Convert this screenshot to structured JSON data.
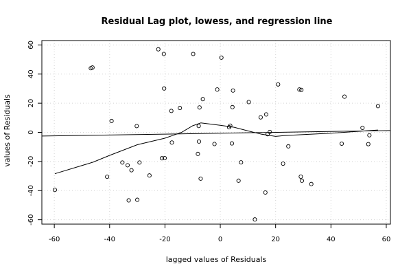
{
  "chart_data": {
    "type": "scatter",
    "title": "Residual Lag plot, lowess, and regression line",
    "xlabel": "lagged values of Residuals",
    "ylabel": "values of Residuals",
    "xlim": [
      -64.5,
      61.5
    ],
    "ylim": [
      -63,
      63
    ],
    "xticks": [
      "-60",
      "-40",
      "-20",
      "0",
      "20",
      "40",
      "60"
    ],
    "xtick_values": [
      -60,
      -40,
      -20,
      0,
      20,
      40,
      60
    ],
    "yticks": [
      "-60",
      "-40",
      "-20",
      "0",
      "20",
      "40",
      "60"
    ],
    "ytick_values": [
      -60,
      -40,
      -20,
      0,
      20,
      40,
      60
    ],
    "grid": true,
    "points": [
      [
        -59.8,
        -39.5
      ],
      [
        -46.8,
        44.0
      ],
      [
        -46.2,
        44.5
      ],
      [
        -40.9,
        -30.5
      ],
      [
        -39.3,
        7.8
      ],
      [
        -35.4,
        -20.7
      ],
      [
        -33.5,
        -22.6
      ],
      [
        -33.1,
        -46.7
      ],
      [
        -32.1,
        -26.0
      ],
      [
        -30.2,
        4.3
      ],
      [
        -30.0,
        -46.3
      ],
      [
        -29.2,
        -20.7
      ],
      [
        -25.6,
        -29.6
      ],
      [
        -22.4,
        57.0
      ],
      [
        -21.1,
        -17.8
      ],
      [
        -20.4,
        53.8
      ],
      [
        -20.3,
        30.1
      ],
      [
        -20.1,
        -17.7
      ],
      [
        -17.7,
        14.7
      ],
      [
        -17.5,
        -7.0
      ],
      [
        -14.6,
        16.7
      ],
      [
        -9.8,
        53.8
      ],
      [
        -8.1,
        -14.8
      ],
      [
        -7.8,
        4.4
      ],
      [
        -7.7,
        -6.3
      ],
      [
        -7.5,
        17.1
      ],
      [
        -7.1,
        -31.8
      ],
      [
        -6.3,
        22.8
      ],
      [
        -2.1,
        -8.0
      ],
      [
        -1.1,
        29.4
      ],
      [
        0.4,
        51.3
      ],
      [
        3.2,
        3.5
      ],
      [
        3.6,
        4.6
      ],
      [
        4.2,
        -7.6
      ],
      [
        4.4,
        17.3
      ],
      [
        4.6,
        28.7
      ],
      [
        6.6,
        -33.2
      ],
      [
        7.5,
        -20.6
      ],
      [
        10.3,
        20.8
      ],
      [
        12.5,
        -59.8
      ],
      [
        14.6,
        10.3
      ],
      [
        16.3,
        -41.3
      ],
      [
        16.6,
        12.3
      ],
      [
        17.1,
        -1.3
      ],
      [
        17.9,
        0.3
      ],
      [
        20.9,
        32.9
      ],
      [
        22.7,
        -21.5
      ],
      [
        24.6,
        -9.6
      ],
      [
        28.6,
        29.4
      ],
      [
        29.1,
        -30.4
      ],
      [
        29.3,
        29.1
      ],
      [
        29.5,
        -33.2
      ],
      [
        32.9,
        -35.5
      ],
      [
        43.9,
        -7.8
      ],
      [
        44.9,
        24.5
      ],
      [
        51.4,
        3.1
      ],
      [
        53.5,
        -8.1
      ],
      [
        53.9,
        -2.0
      ],
      [
        57.0,
        18.0
      ]
    ],
    "lowess": [
      [
        -59.8,
        -28.4
      ],
      [
        -46.0,
        -20.5
      ],
      [
        -40.0,
        -15.8
      ],
      [
        -30.0,
        -8.5
      ],
      [
        -20.0,
        -4.0
      ],
      [
        -14.0,
        0.0
      ],
      [
        -10.0,
        4.5
      ],
      [
        -7.0,
        6.5
      ],
      [
        0.0,
        4.8
      ],
      [
        5.0,
        3.5
      ],
      [
        10.0,
        1.0
      ],
      [
        15.0,
        -1.3
      ],
      [
        20.0,
        -2.8
      ],
      [
        23.0,
        -2.2
      ],
      [
        30.0,
        -1.5
      ],
      [
        40.0,
        -0.6
      ],
      [
        57.0,
        1.6
      ]
    ],
    "regression": {
      "intercept": -0.6,
      "slope": 0.03
    }
  }
}
